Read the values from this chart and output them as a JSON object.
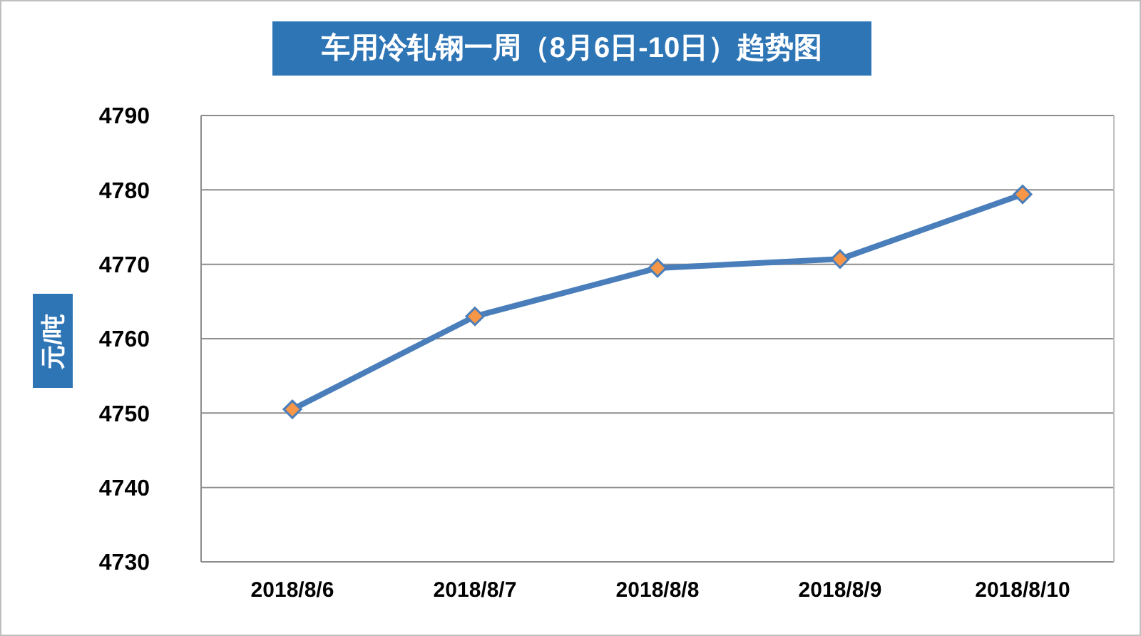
{
  "chart_data": {
    "type": "line",
    "title": "车用冷轧钢一周（8月6日-10日）趋势图",
    "ylabel": "元/吨",
    "categories": [
      "2018/8/6",
      "2018/8/7",
      "2018/8/8",
      "2018/8/9",
      "2018/8/10"
    ],
    "series": [
      {
        "color": "#4a7ebb",
        "values": [
          4750.5,
          4763,
          4769.5,
          4770.7,
          4779.4
        ]
      }
    ],
    "ylim": [
      4730,
      4790
    ],
    "yticks": [
      4730,
      4740,
      4750,
      4760,
      4770,
      4780,
      4790
    ],
    "grid": "y",
    "marker": "diamond",
    "line_style": "solid",
    "legend": false
  }
}
